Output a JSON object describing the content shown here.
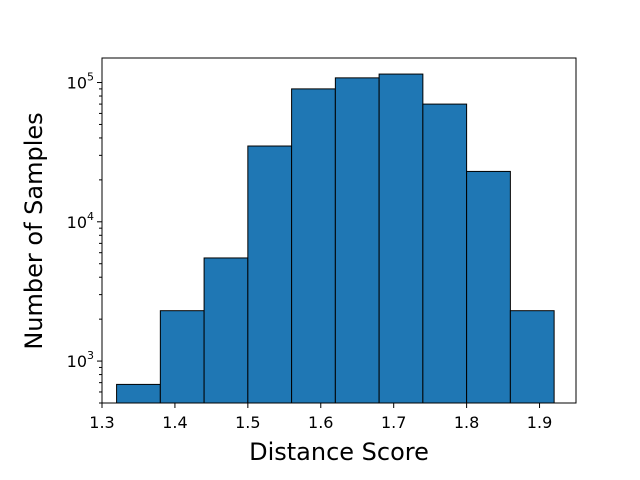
{
  "chart_data": {
    "type": "bar",
    "subtype": "histogram",
    "xlabel": "Distance Score",
    "ylabel": "Number of Samples",
    "yscale": "log",
    "xlim": [
      1.3,
      1.95
    ],
    "ylim": [
      500,
      150000
    ],
    "grid": false,
    "bar_color": "#1f77b4",
    "edge_color": "#000000",
    "bin_edges": [
      1.32,
      1.38,
      1.44,
      1.5,
      1.56,
      1.62,
      1.68,
      1.74,
      1.8,
      1.86,
      1.92
    ],
    "values": [
      680,
      2300,
      5500,
      35000,
      90000,
      108000,
      115000,
      70000,
      23000,
      2300
    ],
    "xticks": [
      1.3,
      1.4,
      1.5,
      1.6,
      1.7,
      1.8,
      1.9
    ],
    "xtick_labels": [
      "1.3",
      "1.4",
      "1.5",
      "1.6",
      "1.7",
      "1.8",
      "1.9"
    ],
    "yticks": [
      1000,
      10000,
      100000
    ],
    "ytick_labels": [
      {
        "base": "10",
        "exp": "3"
      },
      {
        "base": "10",
        "exp": "4"
      },
      {
        "base": "10",
        "exp": "5"
      }
    ]
  }
}
